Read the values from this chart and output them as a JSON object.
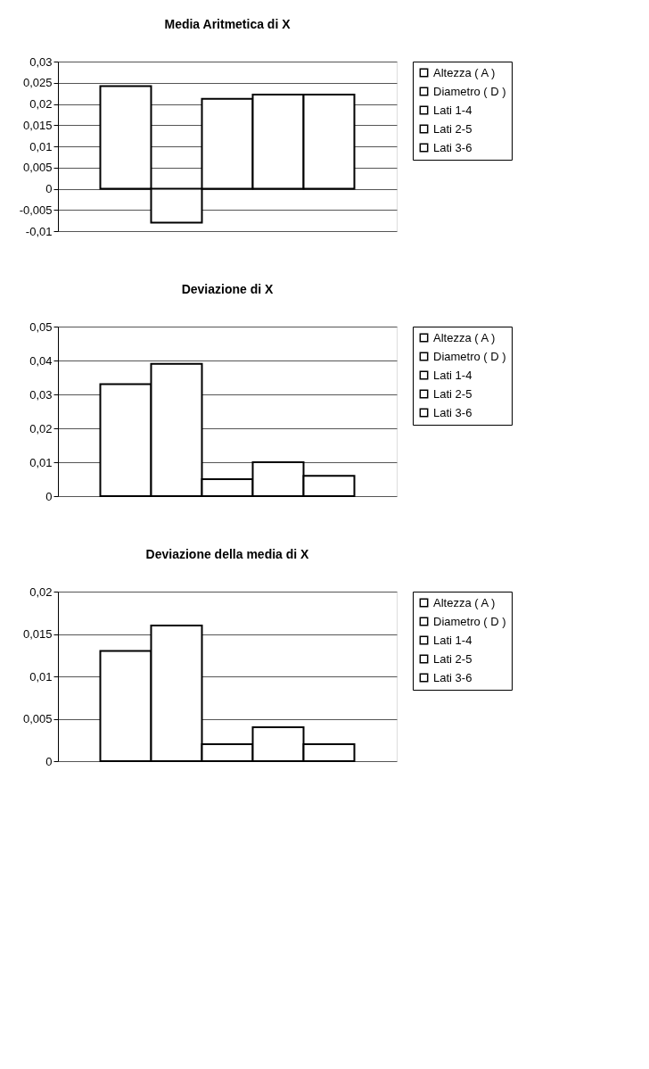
{
  "chart_data": [
    {
      "type": "bar",
      "title": "Media Aritmetica di X",
      "categories": [
        null
      ],
      "series": [
        {
          "name": "Altezza ( A )",
          "color": "#ffffff",
          "values": [
            0.0242
          ]
        },
        {
          "name": "Diametro ( D )",
          "color": "#ffffff",
          "values": [
            -0.008
          ]
        },
        {
          "name": "Lati 1-4",
          "color": "#ffffff",
          "values": [
            0.0212
          ]
        },
        {
          "name": "Lati 2-5",
          "color": "#ffffff",
          "values": [
            0.0222
          ]
        },
        {
          "name": "Lati 3-6",
          "color": "#ffffff",
          "values": [
            0.0222
          ]
        }
      ],
      "ylim": [
        -0.01,
        0.03
      ],
      "yticks": [
        {
          "value": -0.01,
          "label": "-0,01"
        },
        {
          "value": -0.005,
          "label": "-0,005"
        },
        {
          "value": 0,
          "label": "0"
        },
        {
          "value": 0.005,
          "label": "0,005"
        },
        {
          "value": 0.01,
          "label": "0,01"
        },
        {
          "value": 0.015,
          "label": "0,015"
        },
        {
          "value": 0.02,
          "label": "0,02"
        },
        {
          "value": 0.025,
          "label": "0,025"
        },
        {
          "value": 0.03,
          "label": "0,03"
        }
      ],
      "grid": "y",
      "legend": "right",
      "tick_labels": "y"
    },
    {
      "type": "bar",
      "title": "Deviazione di X",
      "categories": [
        null
      ],
      "series": [
        {
          "name": "Altezza ( A )",
          "color": "#ffffff",
          "values": [
            0.033
          ]
        },
        {
          "name": "Diametro ( D )",
          "color": "#ffffff",
          "values": [
            0.039
          ]
        },
        {
          "name": "Lati 1-4",
          "color": "#ffffff",
          "values": [
            0.005
          ]
        },
        {
          "name": "Lati 2-5",
          "color": "#ffffff",
          "values": [
            0.01
          ]
        },
        {
          "name": "Lati 3-6",
          "color": "#ffffff",
          "values": [
            0.006
          ]
        }
      ],
      "ylim": [
        0,
        0.05
      ],
      "yticks": [
        {
          "value": 0,
          "label": "0"
        },
        {
          "value": 0.01,
          "label": "0,01"
        },
        {
          "value": 0.02,
          "label": "0,02"
        },
        {
          "value": 0.03,
          "label": "0,03"
        },
        {
          "value": 0.04,
          "label": "0,04"
        },
        {
          "value": 0.05,
          "label": "0,05"
        }
      ],
      "grid": "y",
      "legend": "right",
      "tick_labels": "y"
    },
    {
      "type": "bar",
      "title": "Deviazione della media di X",
      "categories": [
        null
      ],
      "series": [
        {
          "name": "Altezza ( A )",
          "color": "#ffffff",
          "values": [
            0.013
          ]
        },
        {
          "name": "Diametro ( D )",
          "color": "#ffffff",
          "values": [
            0.016
          ]
        },
        {
          "name": "Lati 1-4",
          "color": "#ffffff",
          "values": [
            0.002
          ]
        },
        {
          "name": "Lati 2-5",
          "color": "#ffffff",
          "values": [
            0.004
          ]
        },
        {
          "name": "Lati 3-6",
          "color": "#ffffff",
          "values": [
            0.002
          ]
        }
      ],
      "ylim": [
        0,
        0.02
      ],
      "yticks": [
        {
          "value": 0,
          "label": "0"
        },
        {
          "value": 0.005,
          "label": "0,005"
        },
        {
          "value": 0.01,
          "label": "0,01"
        },
        {
          "value": 0.015,
          "label": "0,015"
        },
        {
          "value": 0.02,
          "label": "0,02"
        }
      ],
      "grid": "y",
      "legend": "right",
      "tick_labels": "y"
    }
  ]
}
